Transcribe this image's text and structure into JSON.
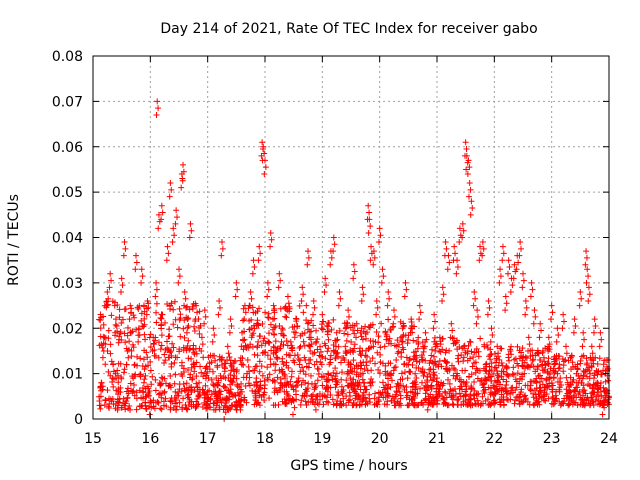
{
  "chart_data": {
    "type": "scatter",
    "title": "Day 214 of 2021, Rate Of TEC Index for receiver gabo",
    "xlabel": "GPS time / hours",
    "ylabel": "ROTI / TECUs",
    "xlim": [
      15,
      24
    ],
    "ylim": [
      0,
      0.08
    ],
    "xticks": [
      15,
      16,
      17,
      18,
      19,
      20,
      21,
      22,
      23,
      24
    ],
    "yticks": [
      0,
      0.01,
      0.02,
      0.03,
      0.04,
      0.05,
      0.06,
      0.07,
      0.08
    ],
    "xtick_labels": [
      "15",
      "16",
      "17",
      "18",
      "19",
      "20",
      "21",
      "22",
      "23",
      "24"
    ],
    "ytick_labels": [
      "0",
      "0.01",
      "0.02",
      "0.03",
      "0.04",
      "0.05",
      "0.06",
      "0.07",
      "0.08"
    ],
    "grid": true,
    "marker": "+",
    "series": [
      {
        "name": "ROTI",
        "color": "#ff0000",
        "points": [
          [
            15.15,
            0.008
          ],
          [
            15.2,
            0.018
          ],
          [
            15.25,
            0.028
          ],
          [
            15.3,
            0.032
          ],
          [
            15.35,
            0.012
          ],
          [
            15.4,
            0.022
          ],
          [
            15.45,
            0.006
          ],
          [
            15.5,
            0.031
          ],
          [
            15.55,
            0.039
          ],
          [
            15.6,
            0.015
          ],
          [
            15.65,
            0.025
          ],
          [
            15.7,
            0.009
          ],
          [
            15.75,
            0.036
          ],
          [
            15.8,
            0.02
          ],
          [
            15.85,
            0.033
          ],
          [
            15.9,
            0.011
          ],
          [
            15.95,
            0.026
          ],
          [
            16.0,
            0.004
          ],
          [
            16.05,
            0.018
          ],
          [
            16.1,
            0.03
          ],
          [
            16.15,
            0.045
          ],
          [
            16.2,
            0.047
          ],
          [
            16.12,
            0.07
          ],
          [
            16.25,
            0.006
          ],
          [
            16.3,
            0.038
          ],
          [
            16.35,
            0.052
          ],
          [
            16.4,
            0.042
          ],
          [
            16.45,
            0.046
          ],
          [
            16.5,
            0.033
          ],
          [
            16.55,
            0.054
          ],
          [
            16.57,
            0.056
          ],
          [
            16.6,
            0.028
          ],
          [
            16.65,
            0.022
          ],
          [
            16.7,
            0.043
          ],
          [
            16.75,
            0.012
          ],
          [
            16.8,
            0.025
          ],
          [
            16.85,
            0.008
          ],
          [
            16.9,
            0.018
          ],
          [
            16.95,
            0.024
          ],
          [
            17.0,
            0.006
          ],
          [
            17.05,
            0.014
          ],
          [
            17.1,
            0.02
          ],
          [
            17.15,
            0.009
          ],
          [
            17.2,
            0.026
          ],
          [
            17.25,
            0.039
          ],
          [
            17.3,
            0.003
          ],
          [
            17.35,
            0.016
          ],
          [
            17.4,
            0.022
          ],
          [
            17.45,
            0.011
          ],
          [
            17.5,
            0.03
          ],
          [
            17.55,
            0.007
          ],
          [
            17.6,
            0.019
          ],
          [
            17.65,
            0.025
          ],
          [
            17.7,
            0.013
          ],
          [
            17.75,
            0.028
          ],
          [
            17.8,
            0.035
          ],
          [
            17.85,
            0.009
          ],
          [
            17.9,
            0.038
          ],
          [
            17.95,
            0.061
          ],
          [
            17.97,
            0.06
          ],
          [
            18.0,
            0.057
          ],
          [
            18.05,
            0.03
          ],
          [
            18.1,
            0.041
          ],
          [
            18.15,
            0.025
          ],
          [
            18.2,
            0.015
          ],
          [
            18.25,
            0.032
          ],
          [
            18.3,
            0.02
          ],
          [
            18.35,
            0.009
          ],
          [
            18.4,
            0.027
          ],
          [
            18.45,
            0.017
          ],
          [
            18.5,
            0.004
          ],
          [
            18.55,
            0.022
          ],
          [
            18.6,
            0.012
          ],
          [
            18.65,
            0.029
          ],
          [
            18.7,
            0.008
          ],
          [
            18.75,
            0.037
          ],
          [
            18.8,
            0.018
          ],
          [
            18.85,
            0.026
          ],
          [
            18.9,
            0.005
          ],
          [
            18.95,
            0.014
          ],
          [
            19.0,
            0.023
          ],
          [
            19.05,
            0.031
          ],
          [
            19.1,
            0.01
          ],
          [
            19.15,
            0.037
          ],
          [
            19.2,
            0.04
          ],
          [
            19.25,
            0.019
          ],
          [
            19.3,
            0.028
          ],
          [
            19.35,
            0.006
          ],
          [
            19.4,
            0.016
          ],
          [
            19.45,
            0.024
          ],
          [
            19.5,
            0.012
          ],
          [
            19.55,
            0.034
          ],
          [
            19.6,
            0.021
          ],
          [
            19.65,
            0.008
          ],
          [
            19.7,
            0.029
          ],
          [
            19.75,
            0.014
          ],
          [
            19.8,
            0.047
          ],
          [
            19.82,
            0.044
          ],
          [
            19.85,
            0.038
          ],
          [
            19.9,
            0.037
          ],
          [
            19.95,
            0.026
          ],
          [
            20.0,
            0.042
          ],
          [
            20.05,
            0.033
          ],
          [
            20.1,
            0.019
          ],
          [
            20.15,
            0.028
          ],
          [
            20.2,
            0.01
          ],
          [
            20.25,
            0.024
          ],
          [
            20.3,
            0.016
          ],
          [
            20.35,
            0.006
          ],
          [
            20.4,
            0.02
          ],
          [
            20.45,
            0.03
          ],
          [
            20.5,
            0.012
          ],
          [
            20.55,
            0.022
          ],
          [
            20.6,
            0.008
          ],
          [
            20.65,
            0.017
          ],
          [
            20.7,
            0.025
          ],
          [
            20.75,
            0.011
          ],
          [
            20.8,
            0.019
          ],
          [
            20.85,
            0.005
          ],
          [
            20.9,
            0.014
          ],
          [
            20.95,
            0.023
          ],
          [
            21.0,
            0.009
          ],
          [
            21.05,
            0.018
          ],
          [
            21.1,
            0.029
          ],
          [
            21.15,
            0.039
          ],
          [
            21.2,
            0.036
          ],
          [
            21.25,
            0.021
          ],
          [
            21.3,
            0.038
          ],
          [
            21.35,
            0.035
          ],
          [
            21.4,
            0.042
          ],
          [
            21.45,
            0.043
          ],
          [
            21.5,
            0.061
          ],
          [
            21.52,
            0.058
          ],
          [
            21.55,
            0.057
          ],
          [
            21.57,
            0.052
          ],
          [
            21.6,
            0.048
          ],
          [
            21.65,
            0.028
          ],
          [
            21.7,
            0.024
          ],
          [
            21.75,
            0.038
          ],
          [
            21.8,
            0.039
          ],
          [
            21.85,
            0.012
          ],
          [
            21.9,
            0.026
          ],
          [
            21.95,
            0.02
          ],
          [
            22.0,
            0.007
          ],
          [
            22.05,
            0.016
          ],
          [
            22.1,
            0.033
          ],
          [
            22.15,
            0.038
          ],
          [
            22.2,
            0.027
          ],
          [
            22.25,
            0.035
          ],
          [
            22.3,
            0.031
          ],
          [
            22.35,
            0.034
          ],
          [
            22.4,
            0.036
          ],
          [
            22.45,
            0.039
          ],
          [
            22.5,
            0.032
          ],
          [
            22.55,
            0.026
          ],
          [
            22.6,
            0.018
          ],
          [
            22.65,
            0.03
          ],
          [
            22.7,
            0.024
          ],
          [
            22.75,
            0.011
          ],
          [
            22.8,
            0.021
          ],
          [
            22.85,
            0.015
          ],
          [
            22.9,
            0.007
          ],
          [
            22.95,
            0.018
          ],
          [
            23.0,
            0.025
          ],
          [
            23.05,
            0.012
          ],
          [
            23.1,
            0.02
          ],
          [
            23.15,
            0.009
          ],
          [
            23.2,
            0.023
          ],
          [
            23.25,
            0.016
          ],
          [
            23.3,
            0.006
          ],
          [
            23.35,
            0.014
          ],
          [
            23.4,
            0.022
          ],
          [
            23.45,
            0.011
          ],
          [
            23.5,
            0.028
          ],
          [
            23.55,
            0.019
          ],
          [
            23.6,
            0.037
          ],
          [
            23.62,
            0.033
          ],
          [
            23.65,
            0.029
          ],
          [
            23.7,
            0.016
          ],
          [
            23.75,
            0.022
          ],
          [
            23.8,
            0.008
          ],
          [
            23.85,
            0.019
          ],
          [
            23.9,
            0.004
          ],
          [
            23.95,
            0.013
          ]
        ]
      }
    ],
    "dense_band": {
      "description_only": false,
      "segments": [
        {
          "x_from": 15.1,
          "x_to": 16.9,
          "low": 0.002,
          "high": 0.026
        },
        {
          "x_from": 16.9,
          "x_to": 17.6,
          "low": 0.002,
          "high": 0.014
        },
        {
          "x_from": 17.6,
          "x_to": 18.8,
          "low": 0.003,
          "high": 0.025
        },
        {
          "x_from": 18.8,
          "x_to": 20.6,
          "low": 0.003,
          "high": 0.022
        },
        {
          "x_from": 20.6,
          "x_to": 21.9,
          "low": 0.003,
          "high": 0.018
        },
        {
          "x_from": 21.9,
          "x_to": 23.0,
          "low": 0.003,
          "high": 0.016
        },
        {
          "x_from": 23.0,
          "x_to": 24.0,
          "low": 0.003,
          "high": 0.014
        }
      ]
    }
  }
}
